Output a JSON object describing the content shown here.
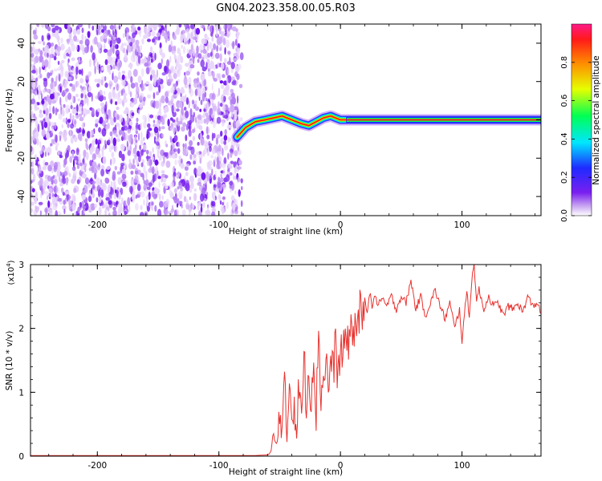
{
  "title": "GN04.2023.358.00.05.R03",
  "chart_data": [
    {
      "type": "heatmap",
      "xlabel": "Height of straight line (km)",
      "ylabel": "Frequency (Hz)",
      "xlim": [
        -255,
        165
      ],
      "ylim": [
        -50,
        50
      ],
      "xticks": [
        -200,
        -100,
        0,
        100
      ],
      "yticks": [
        -40,
        -20,
        0,
        20,
        40
      ],
      "colorbar": {
        "label": "Normalized spectral amplitude",
        "range": [
          0,
          1
        ],
        "ticks": [
          0.0,
          0.2,
          0.4,
          0.6,
          0.8
        ]
      },
      "noise_region_x": [
        -255,
        -85
      ],
      "signal_line": {
        "x": [
          -85,
          -78,
          -70,
          -62,
          -55,
          -48,
          -40,
          -32,
          -26,
          -20,
          -14,
          -8,
          -4,
          0,
          5,
          20,
          60,
          100,
          165
        ],
        "y": [
          -9,
          -4,
          -1,
          0,
          1,
          2,
          0,
          -2,
          -3,
          -1,
          1,
          2,
          1,
          0,
          0,
          0,
          0,
          0,
          0
        ]
      }
    },
    {
      "type": "line",
      "xlabel": "Height of straight line (km)",
      "ylabel": "SNR (10 * v/v)",
      "y_multiplier_label": "(x10",
      "y_multiplier_exp": "4",
      "xlim": [
        -255,
        165
      ],
      "ylim": [
        0,
        3
      ],
      "xticks": [
        -200,
        -100,
        0,
        100
      ],
      "yticks": [
        0,
        1,
        2,
        3
      ],
      "color": "#e8322e",
      "series": [
        {
          "x": [
            -255,
            -200,
            -150,
            -100,
            -70,
            -60,
            -57,
            -55,
            -52,
            -50,
            -48,
            -46,
            -44,
            -42,
            -40,
            -38,
            -36,
            -34,
            -32,
            -30,
            -28,
            -26,
            -24,
            -22,
            -20,
            -18,
            -16,
            -14,
            -12,
            -10,
            -8,
            -6,
            -4,
            -2,
            0,
            2,
            4,
            6,
            8,
            10,
            12,
            14,
            16,
            18,
            20,
            22,
            24,
            26,
            28,
            30,
            34,
            38,
            42,
            46,
            50,
            54,
            58,
            62,
            66,
            70,
            74,
            78,
            82,
            86,
            90,
            94,
            98,
            100,
            104,
            106,
            108,
            110,
            112,
            114,
            118,
            122,
            126,
            130,
            134,
            138,
            142,
            146,
            150,
            154,
            158,
            162,
            165
          ],
          "y": [
            0.01,
            0.01,
            0.01,
            0.01,
            0.01,
            0.02,
            0.05,
            0.3,
            0.15,
            0.8,
            0.4,
            1.1,
            0.2,
            1.3,
            0.6,
            0.9,
            0.3,
            1.2,
            0.5,
            1.6,
            0.8,
            1.4,
            0.9,
            1.7,
            0.6,
            2.05,
            0.9,
            1.2,
            1.6,
            1.0,
            1.5,
            1.3,
            1.8,
            1.2,
            1.7,
            1.5,
            1.9,
            1.7,
            2.1,
            1.8,
            2.15,
            1.95,
            2.3,
            2.0,
            2.45,
            2.3,
            2.55,
            2.35,
            2.5,
            2.4,
            2.45,
            2.35,
            2.5,
            2.3,
            2.5,
            2.4,
            2.75,
            2.3,
            2.5,
            2.2,
            2.4,
            2.6,
            2.35,
            2.15,
            2.4,
            2.0,
            2.3,
            1.8,
            2.6,
            2.2,
            2.75,
            3.0,
            2.45,
            2.6,
            2.3,
            2.5,
            2.35,
            2.4,
            2.2,
            2.35,
            2.3,
            2.4,
            2.25,
            2.5,
            2.35,
            2.4,
            2.25
          ]
        }
      ]
    }
  ]
}
